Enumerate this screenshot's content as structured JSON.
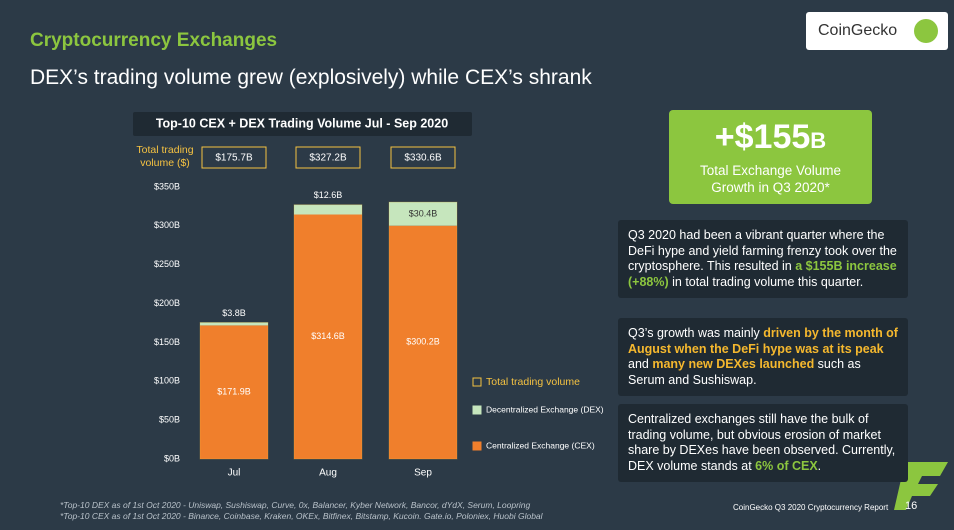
{
  "header": {
    "section": "Cryptocurrency Exchanges",
    "headline": "DEX’s trading volume grew (explosively) while CEX’s shrank",
    "logo": "CoinGecko"
  },
  "chart_data": {
    "type": "stacked_bar",
    "title": "Top-10 CEX + DEX Trading Volume Jul - Sep 2020",
    "categories": [
      "Jul",
      "Aug",
      "Sep"
    ],
    "series": [
      {
        "name": "Centralized Exchange (CEX)",
        "color": "#f07f2c",
        "values": [
          171.9,
          314.6,
          300.2
        ],
        "value_labels": [
          "$171.9B",
          "$314.6B",
          "$300.2B"
        ]
      },
      {
        "name": "Decentralized Exchange (DEX)",
        "color": "#c6e6bd",
        "values": [
          3.8,
          12.6,
          30.4
        ],
        "value_labels": [
          "$3.8B",
          "$12.6B",
          "$30.4B"
        ]
      }
    ],
    "totals": {
      "name": "Total trading volume",
      "label": "Total trading volume ($)",
      "color": "#f5c242",
      "values": [
        175.7,
        327.2,
        330.6
      ],
      "value_labels": [
        "$175.7B",
        "$327.2B",
        "$330.6B"
      ]
    },
    "ylim": [
      0,
      350
    ],
    "yticks": [
      {
        "value": 0,
        "label": "$0B"
      },
      {
        "value": 50,
        "label": "$50B"
      },
      {
        "value": 100,
        "label": "$100B"
      },
      {
        "value": 150,
        "label": "$150B"
      },
      {
        "value": 200,
        "label": "$200B"
      },
      {
        "value": 250,
        "label": "$250B"
      },
      {
        "value": 300,
        "label": "$300B"
      },
      {
        "value": 350,
        "label": "$350B"
      }
    ]
  },
  "callout": {
    "value": "+$155",
    "unit": "B",
    "text": "Total Exchange Volume Growth in Q3 2020*"
  },
  "paragraphs": [
    [
      "Q3 2020 had been a vibrant quarter where the DeFi hype and yield farming frenzy took over the cryptosphere. This resulted in ",
      "a $155B increase (+88%)",
      " in total trading volume this quarter."
    ],
    [
      "Q3’s growth was mainly ",
      "driven by the month of August when the DeFi hype was at its peak",
      " and ",
      "many new DEXes launched",
      " such as Serum and Sushiswap."
    ],
    [
      "Centralized exchanges still have the bulk of trading volume, but obvious erosion of market share by DEXes have been observed. Currently, DEX volume stands at ",
      "6% of CEX",
      "."
    ]
  ],
  "footnotes": [
    "*Top-10 DEX as of 1st Oct 2020 - Uniswap, Sushiswap, Curve, 0x, Balancer, Kyber Network, Bancor, dYdX, Serum, Loopring",
    "*Top-10 CEX as of 1st Oct 2020 - Binance, Coinbase, Kraken, OKEx, Bitfinex, Bitstamp, Kucoin. Gate.io, Poloniex, Huobi Global"
  ],
  "footer": {
    "report": "CoinGecko Q3 2020 Cryptocurrency Report",
    "page": 16
  }
}
